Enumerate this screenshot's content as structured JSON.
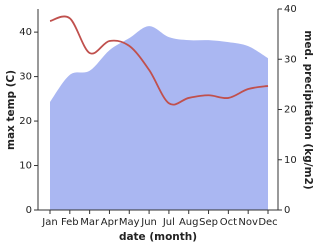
{
  "chart_data": {
    "type": "line",
    "x_label": "date (month)",
    "y_label": "max temp (C)",
    "y2_label": "med. precipitation (kg/m2)",
    "categories": [
      "Jan",
      "Feb",
      "Mar",
      "Apr",
      "May",
      "Jun",
      "Jul",
      "Aug",
      "Sep",
      "Oct",
      "Nov",
      "Dec"
    ],
    "series": [
      {
        "name": "med. precipitation",
        "color": "#aab7f2",
        "axis": "y2",
        "style": "area",
        "values": [
          21.5,
          26.9,
          27.7,
          31.8,
          34.2,
          36.6,
          34.4,
          33.8,
          33.8,
          33.4,
          32.6,
          30.2
        ]
      },
      {
        "name": "max temp",
        "color": "#c0504d",
        "style": "line",
        "values": [
          42.5,
          43.1,
          35.3,
          38.0,
          36.9,
          31.5,
          24.0,
          25.2,
          25.8,
          25.2,
          27.2,
          27.9
        ]
      }
    ],
    "ylim": [
      0,
      45.2
    ],
    "yticks": [
      0,
      10,
      20,
      30,
      40
    ],
    "y2lim": [
      0,
      40
    ],
    "y2ticks": [
      0,
      10,
      20,
      30,
      40
    ]
  }
}
